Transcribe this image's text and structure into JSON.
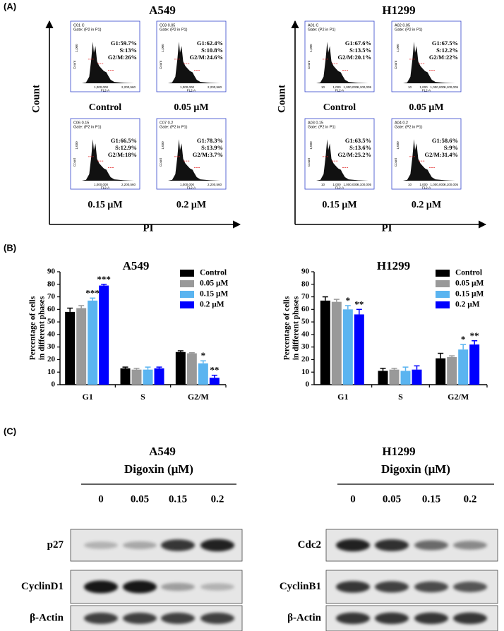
{
  "panel_labels": [
    "(A)",
    "(B)",
    "(C)"
  ],
  "panel_a": {
    "y_label": "Count",
    "x_label": "PI",
    "hist_y_label": "Count",
    "hist_x_label": "FL2-A",
    "groups": [
      {
        "title": "A549",
        "y_tick": "1,000",
        "x_ticks": [
          "1,000,000",
          "2,200,560"
        ],
        "plots": [
          {
            "id": "C01 C",
            "gate": "Gate: (P2 in P1)",
            "stats": [
              "G1:59.7%",
              "S:13%",
              "G2/M:26%"
            ],
            "caption": "Control"
          },
          {
            "id": "C03 0.05",
            "gate": "Gate: (P2 in P1)",
            "stats": [
              "G1:62.4%",
              "S:10.8%",
              "G2/M:24.6%"
            ],
            "caption": "0.05 μM"
          },
          {
            "id": "C06 0.15",
            "gate": "Gate: (P2 in P1)",
            "stats": [
              "G1:66.5%",
              "S:12.9%",
              "G2/M:18%"
            ],
            "caption": "0.15 μM"
          },
          {
            "id": "C07 0.2",
            "gate": "Gate: (P2 in P1)",
            "stats": [
              "G1:78.3%",
              "S:13.9%",
              "G2/M:3.7%"
            ],
            "caption": "0.2 μM"
          }
        ]
      },
      {
        "title": "H1299",
        "y_tick": "1,000",
        "x_ticks": [
          "10",
          "1,000",
          "1,000,000",
          "8,100,005"
        ],
        "plots": [
          {
            "id": "A01 C",
            "gate": "Gate: (P2 in P1)",
            "stats": [
              "G1:67.6%",
              "S:13.5%",
              "G2/M:20.1%"
            ],
            "caption": "Control"
          },
          {
            "id": "A02 0.05",
            "gate": "Gate: (P2 in P1)",
            "stats": [
              "G1:67.5%",
              "S:12.2%",
              "G2/M:22%"
            ],
            "caption": "0.05 μM"
          },
          {
            "id": "A03 0.15",
            "gate": "Gate: (P2 in P1)",
            "stats": [
              "G1:63.5%",
              "S:13.6%",
              "G2/M:25.2%"
            ],
            "caption": "0.15 μM"
          },
          {
            "id": "A04 0.2",
            "gate": "Gate: (P2 in P1)",
            "stats": [
              "G1:58.6%",
              "S:9%",
              "G2/M:31.4%"
            ],
            "caption": "0.2 μM"
          }
        ]
      }
    ]
  },
  "chart_data": [
    {
      "type": "bar",
      "title": "A549",
      "ylabel": [
        "Percentage of cells",
        "in different phases"
      ],
      "categories": [
        "G1",
        "S",
        "G2/M"
      ],
      "series": [
        {
          "name": "Control",
          "color": "#000000",
          "values": [
            58,
            13,
            26
          ],
          "errors": [
            3,
            1,
            1
          ],
          "significance": [
            null,
            null,
            null
          ]
        },
        {
          "name": "0.05 μM",
          "color": "#999999",
          "values": [
            61,
            12,
            25
          ],
          "errors": [
            2,
            1,
            0.5
          ],
          "significance": [
            null,
            null,
            null
          ]
        },
        {
          "name": "0.15 μM",
          "color": "#5ab4f0",
          "values": [
            67,
            12,
            17
          ],
          "errors": [
            2,
            2,
            2
          ],
          "significance": [
            "***",
            null,
            "*"
          ]
        },
        {
          "name": "0.2 μM",
          "color": "#0000ff",
          "values": [
            79,
            13,
            5.5
          ],
          "errors": [
            1,
            1,
            2
          ],
          "significance": [
            "***",
            null,
            "**"
          ]
        }
      ],
      "ylim": [
        0,
        90
      ],
      "yticks": [
        0,
        10,
        20,
        30,
        40,
        50,
        60,
        70,
        80,
        90
      ],
      "legend": "upper right"
    },
    {
      "type": "bar",
      "title": "H1299",
      "ylabel": [
        "Percentage of cells",
        "in different phases"
      ],
      "categories": [
        "G1",
        "S",
        "G2/M"
      ],
      "series": [
        {
          "name": "Control",
          "color": "#000000",
          "values": [
            67,
            11,
            21
          ],
          "errors": [
            3,
            2,
            4
          ],
          "significance": [
            null,
            null,
            null
          ]
        },
        {
          "name": "0.05 μM",
          "color": "#999999",
          "values": [
            66,
            12,
            22
          ],
          "errors": [
            2,
            1,
            1
          ],
          "significance": [
            null,
            null,
            null
          ]
        },
        {
          "name": "0.15 μM",
          "color": "#5ab4f0",
          "values": [
            60,
            11,
            28
          ],
          "errors": [
            3,
            3,
            4
          ],
          "significance": [
            "*",
            null,
            "*"
          ]
        },
        {
          "name": "0.2 μM",
          "color": "#0000ff",
          "values": [
            56,
            12,
            32
          ],
          "errors": [
            4,
            3,
            3
          ],
          "significance": [
            "**",
            null,
            "**"
          ]
        }
      ],
      "ylim": [
        0,
        90
      ],
      "yticks": [
        0,
        10,
        20,
        30,
        40,
        50,
        60,
        70,
        80,
        90
      ],
      "legend": "upper right"
    }
  ],
  "panel_c": {
    "blots": [
      {
        "title": "A549",
        "treatment": "Digoxin (μM)",
        "lanes": [
          "0",
          "0.05",
          "0.15",
          "0.2"
        ],
        "rows": [
          "p27",
          "CyclinD1",
          "β-Actin"
        ]
      },
      {
        "title": "H1299",
        "treatment": "Digoxin (μM)",
        "lanes": [
          "0",
          "0.05",
          "0.15",
          "0.2"
        ],
        "rows": [
          "Cdc2",
          "CyclinB1",
          "β-Actin"
        ]
      }
    ]
  }
}
